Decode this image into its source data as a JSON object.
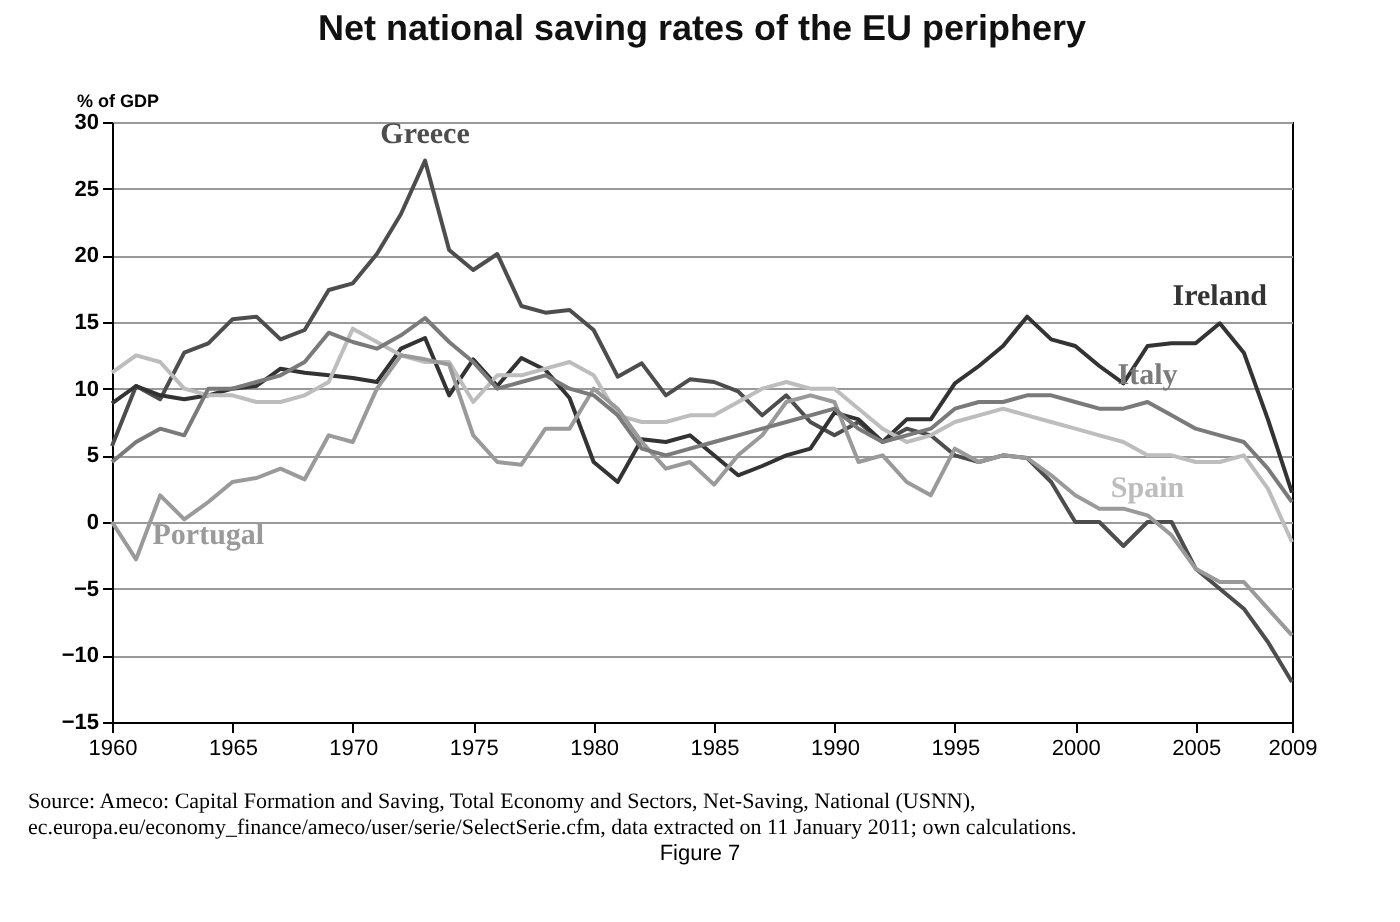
{
  "chart_data": {
    "type": "line",
    "title": "Net national saving rates of the EU periphery",
    "ylabel": "% of GDP",
    "x": [
      1960,
      1961,
      1962,
      1963,
      1964,
      1965,
      1966,
      1967,
      1968,
      1969,
      1970,
      1971,
      1972,
      1973,
      1974,
      1975,
      1976,
      1977,
      1978,
      1979,
      1980,
      1981,
      1982,
      1983,
      1984,
      1985,
      1986,
      1987,
      1988,
      1989,
      1990,
      1991,
      1992,
      1993,
      1994,
      1995,
      1996,
      1997,
      1998,
      1999,
      2000,
      2001,
      2002,
      2003,
      2004,
      2005,
      2006,
      2007,
      2008,
      2009
    ],
    "series": [
      {
        "name": "Greece",
        "color": "#4d4d4d",
        "values": [
          5.7,
          10.2,
          9.2,
          12.7,
          13.4,
          15.2,
          15.4,
          13.7,
          14.4,
          17.4,
          17.9,
          20.1,
          23.1,
          27.1,
          20.4,
          18.9,
          20.1,
          16.2,
          15.7,
          15.9,
          14.4,
          10.9,
          11.9,
          9.5,
          10.7,
          10.5,
          9.8,
          8.0,
          9.5,
          7.5,
          6.5,
          7.5,
          6.0,
          7.0,
          6.5,
          5.0,
          4.5,
          5.0,
          4.8,
          3.0,
          0.0,
          0.0,
          -1.8,
          0.0,
          0.0,
          -3.5,
          -5.0,
          -6.5,
          -9.0,
          -12.0
        ]
      },
      {
        "name": "Ireland",
        "color": "#333333",
        "values": [
          8.9,
          10.2,
          9.5,
          9.2,
          9.5,
          10.0,
          10.2,
          11.5,
          11.2,
          11.0,
          10.8,
          10.5,
          13.0,
          13.8,
          9.5,
          12.2,
          10.2,
          12.3,
          11.4,
          9.3,
          4.5,
          3.0,
          6.2,
          6.0,
          6.5,
          5.0,
          3.5,
          4.2,
          5.0,
          5.5,
          8.2,
          7.7,
          6.0,
          7.7,
          7.7,
          10.4,
          11.7,
          13.2,
          15.4,
          13.7,
          13.2,
          11.7,
          10.4,
          13.2,
          13.4,
          13.4,
          14.9,
          12.7,
          7.7,
          2.2
        ]
      },
      {
        "name": "Spain",
        "color": "#bdbdbd",
        "values": [
          11.2,
          12.5,
          12.0,
          10.0,
          9.5,
          9.5,
          9.0,
          9.0,
          9.5,
          10.5,
          14.5,
          13.5,
          12.5,
          12.0,
          12.0,
          9.0,
          11.0,
          11.0,
          11.5,
          12.0,
          11.0,
          8.0,
          7.5,
          7.5,
          8.0,
          8.0,
          9.0,
          10.0,
          10.5,
          10.0,
          10.0,
          8.5,
          7.0,
          6.0,
          6.5,
          7.5,
          8.0,
          8.5,
          8.0,
          7.5,
          7.0,
          6.5,
          6.0,
          5.0,
          5.0,
          4.5,
          4.5,
          5.0,
          2.5,
          -1.5
        ]
      },
      {
        "name": "Portugal",
        "color": "#9a9a9a",
        "values": [
          0.0,
          -2.8,
          2.0,
          0.2,
          1.5,
          3.0,
          3.3,
          4.0,
          3.2,
          6.5,
          6.0,
          10.0,
          12.5,
          12.2,
          11.8,
          6.5,
          4.5,
          4.3,
          7.0,
          7.0,
          10.0,
          8.5,
          6.0,
          4.0,
          4.5,
          2.8,
          5.0,
          6.5,
          9.0,
          9.5,
          9.0,
          4.5,
          5.0,
          3.0,
          2.0,
          5.5,
          4.5,
          5.0,
          4.8,
          3.5,
          2.0,
          1.0,
          1.0,
          0.5,
          -1.0,
          -3.5,
          -4.5,
          -4.5,
          -6.5,
          -8.5
        ]
      },
      {
        "name": "Italy",
        "color": "#7a7a7a",
        "values": [
          4.5,
          6.0,
          7.0,
          6.5,
          10.0,
          10.0,
          10.5,
          11.0,
          12.0,
          14.2,
          13.5,
          13.0,
          14.0,
          15.3,
          13.5,
          12.0,
          10.0,
          10.5,
          11.0,
          10.0,
          9.5,
          8.0,
          5.5,
          5.0,
          5.5,
          6.0,
          6.5,
          7.0,
          7.5,
          8.0,
          8.5,
          7.0,
          6.0,
          6.5,
          7.0,
          8.5,
          9.0,
          9.0,
          9.5,
          9.5,
          9.0,
          8.5,
          8.5,
          9.0,
          8.0,
          7.0,
          6.5,
          6.0,
          4.0,
          1.5
        ]
      }
    ],
    "xlim": [
      1960,
      2009
    ],
    "xticks": [
      1960,
      1965,
      1970,
      1975,
      1980,
      1985,
      1990,
      1995,
      2000,
      2005,
      2009
    ],
    "ylim": [
      -15,
      30
    ],
    "yticks": [
      -15,
      -10,
      -5,
      0,
      5,
      10,
      15,
      20,
      25,
      30
    ],
    "grid": "y",
    "legend": false,
    "annotations": [
      "Source: Ameco: Capital Formation and Saving, Total Economy and Sectors, Net-Saving, National (USNN), ec.europa.eu/economy_finance/ameco/user/serie/SelectSerie.cfm, data extracted on 11 January 2011; own calculations.",
      "Figure 7"
    ]
  }
}
